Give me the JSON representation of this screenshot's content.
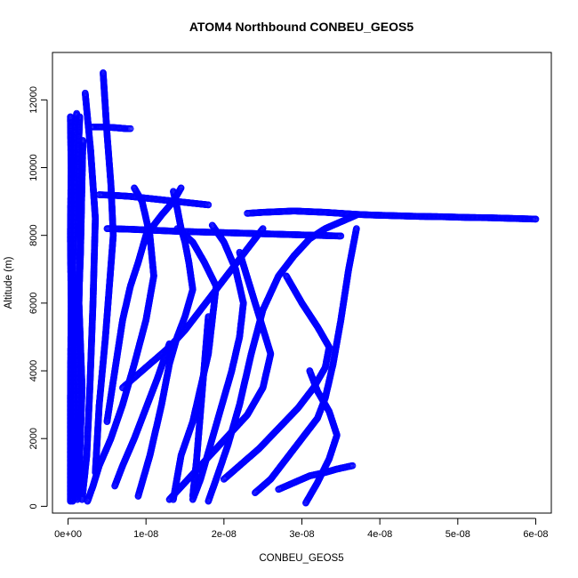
{
  "chart_data": {
    "type": "scatter",
    "title": "ATOM4 Northbound CONBEU_GEOS5",
    "xlabel": "CONBEU_GEOS5",
    "ylabel": "Altitude (m)",
    "xlim": [
      -2e-09,
      6.2e-08
    ],
    "ylim": [
      -200,
      13400
    ],
    "x_ticks": [
      0,
      1e-08,
      2e-08,
      3e-08,
      4e-08,
      5e-08,
      6e-08
    ],
    "x_tick_labels": [
      "0e+00",
      "1e-08",
      "2e-08",
      "3e-08",
      "4e-08",
      "5e-08",
      "6e-08"
    ],
    "y_ticks": [
      0,
      2000,
      4000,
      6000,
      8000,
      10000,
      12000
    ],
    "y_tick_labels": [
      "0",
      "2000",
      "4000",
      "6000",
      "8000",
      "10000",
      "12000"
    ],
    "marker": "open-circle",
    "color": "#0000ff",
    "grid": false,
    "series": [
      {
        "x": [
          6e-10,
          6e-10,
          7e-10,
          6e-10,
          8e-10,
          7e-10,
          9e-10,
          1.1e-09
        ],
        "y": [
          150,
          2000,
          4500,
          7000,
          9000,
          10500,
          11200,
          11600
        ]
      },
      {
        "x": [
          1.2e-09,
          1.5e-09,
          1.8e-09,
          1.4e-09,
          1.6e-09,
          1.3e-09,
          1.5e-09
        ],
        "y": [
          200,
          1500,
          3500,
          6000,
          8500,
          10400,
          11500
        ]
      },
      {
        "x": [
          1.8e-09,
          2.4e-09,
          2.8e-09,
          3.2e-09,
          3.5e-09,
          2.9e-09,
          2.2e-09
        ],
        "y": [
          200,
          1500,
          3500,
          6000,
          8500,
          10500,
          12200
        ]
      },
      {
        "x": [
          2.5e-09,
          3.2e-09,
          4e-09,
          5.5e-09,
          7e-09,
          8.5e-09,
          1e-08,
          1.1e-08,
          1.05e-08,
          9.5e-09,
          8.5e-09
        ],
        "y": [
          150,
          600,
          1200,
          2000,
          3000,
          4200,
          5500,
          6800,
          8000,
          9000,
          9400
        ]
      },
      {
        "x": [
          3.5e-09,
          4e-09,
          4.8e-09,
          5.3e-09,
          5.8e-09,
          5.5e-09,
          5e-09,
          4.5e-09
        ],
        "y": [
          1000,
          3000,
          5000,
          6500,
          8000,
          9500,
          11000,
          12800
        ]
      },
      {
        "x": [
          5e-09,
          6e-09,
          7e-09,
          8e-09,
          9e-09,
          1e-08,
          1.2e-08,
          1.35e-08,
          1.45e-08
        ],
        "y": [
          2500,
          4000,
          5500,
          6500,
          7200,
          8000,
          8600,
          9000,
          9400
        ]
      },
      {
        "x": [
          9e-09,
          1.05e-08,
          1.2e-08,
          1.3e-08,
          1.4e-08,
          1.5e-08,
          1.6e-08,
          1.55e-08,
          1.5e-08,
          1.45e-08,
          1.4e-08,
          1.35e-08
        ],
        "y": [
          300,
          1500,
          3000,
          4200,
          5000,
          5600,
          6400,
          7200,
          7800,
          8200,
          8800,
          9300
        ]
      },
      {
        "x": [
          1.35e-08,
          1.45e-08,
          1.6e-08,
          1.7e-08,
          1.8e-08,
          1.85e-08,
          1.9e-08,
          1.75e-08,
          1.6e-08,
          1.4e-08
        ],
        "y": [
          200,
          1500,
          2500,
          3500,
          4500,
          5500,
          6500,
          7200,
          7800,
          8200
        ]
      },
      {
        "x": [
          1.6e-08,
          1.7e-08,
          1.8e-08,
          1.9e-08,
          2e-08,
          2.1e-08,
          2.2e-08,
          2.25e-08,
          2.15e-08,
          2e-08,
          1.85e-08
        ],
        "y": [
          200,
          800,
          1600,
          2400,
          3200,
          4000,
          5000,
          6000,
          7000,
          7800,
          8300
        ]
      },
      {
        "x": [
          1.8e-08,
          1.9e-08,
          2.05e-08,
          2.2e-08,
          2.35e-08,
          2.5e-08,
          2.7e-08,
          2.9e-08,
          3.1e-08,
          3.3e-08,
          3.5e-08,
          3.7e-08
        ],
        "y": [
          150,
          800,
          1800,
          3000,
          4500,
          5800,
          6800,
          7400,
          7900,
          8200,
          8400,
          8600
        ]
      },
      {
        "x": [
          2.4e-08,
          2.6e-08,
          2.8e-08,
          3e-08,
          3.2e-08,
          3.3e-08,
          3.4e-08,
          3.5e-08,
          3.6e-08,
          3.7e-08
        ],
        "y": [
          400,
          800,
          1400,
          2000,
          2600,
          3200,
          4200,
          5500,
          7000,
          8200
        ]
      },
      {
        "x": [
          2.7e-08,
          2.9e-08,
          3.1e-08,
          3.3e-08,
          3.45e-08,
          3.55e-08,
          3.65e-08
        ],
        "y": [
          500,
          700,
          900,
          1000,
          1100,
          1150,
          1200
        ]
      },
      {
        "x": [
          2.3e-08,
          2.5e-08,
          2.7e-08,
          2.9e-08,
          3.1e-08,
          3.3e-08,
          3.5e-08,
          3.7e-08,
          3.9e-08,
          4.2e-08,
          4.5e-08,
          4.8e-08,
          5.1e-08,
          5.4e-08,
          5.7e-08,
          6e-08
        ],
        "y": [
          8650,
          8680,
          8700,
          8720,
          8700,
          8680,
          8650,
          8620,
          8600,
          8580,
          8560,
          8550,
          8530,
          8520,
          8500,
          8480
        ]
      },
      {
        "x": [
          5e-09,
          8e-09,
          1.1e-08,
          1.4e-08,
          1.7e-08,
          2e-08,
          2.3e-08,
          2.6e-08,
          2.9e-08,
          3.2e-08,
          3.5e-08
        ],
        "y": [
          8200,
          8180,
          8150,
          8120,
          8100,
          8080,
          8060,
          8040,
          8020,
          8000,
          7980
        ]
      },
      {
        "x": [
          4e-09,
          6e-09,
          8e-09,
          1e-08,
          1.2e-08,
          1.4e-08,
          1.6e-08,
          1.8e-08
        ],
        "y": [
          9200,
          9180,
          9150,
          9100,
          9050,
          9000,
          8950,
          8900
        ]
      },
      {
        "x": [
          3e-09,
          4.5e-09,
          6e-09,
          7.5e-09,
          8e-09
        ],
        "y": [
          11200,
          11200,
          11180,
          11150,
          11150
        ]
      },
      {
        "x": [
          3e-10,
          3e-10,
          4e-10,
          3e-10,
          4e-10,
          3e-10
        ],
        "y": [
          150,
          3000,
          6000,
          8000,
          10000,
          11500
        ]
      },
      {
        "x": [
          1e-09,
          1.4e-09,
          1.2e-09,
          1.6e-09,
          1.9e-09
        ],
        "y": [
          250,
          2500,
          5000,
          7500,
          10800
        ]
      },
      {
        "x": [
          1.3e-08,
          1.5e-08,
          1.7e-08,
          1.9e-08,
          2.1e-08,
          2.3e-08,
          2.5e-08,
          2.6e-08,
          2.4e-08,
          2.2e-08
        ],
        "y": [
          200,
          700,
          1200,
          1700,
          2200,
          2700,
          3500,
          4500,
          6000,
          7500
        ]
      },
      {
        "x": [
          2e-08,
          2.2e-08,
          2.45e-08,
          2.7e-08,
          2.95e-08,
          3.15e-08,
          3.3e-08,
          3.35e-08,
          3.2e-08,
          3e-08,
          2.8e-08
        ],
        "y": [
          800,
          1200,
          1700,
          2300,
          2900,
          3500,
          4100,
          4700,
          5300,
          6000,
          6800
        ]
      },
      {
        "x": [
          3.05e-08,
          3.2e-08,
          3.35e-08,
          3.45e-08,
          3.35e-08,
          3.2e-08,
          3.1e-08
        ],
        "y": [
          100,
          700,
          1400,
          2100,
          2800,
          3400,
          4000
        ]
      },
      {
        "x": [
          1.6e-08,
          1.65e-08,
          1.7e-08,
          1.75e-08,
          1.8e-08
        ],
        "y": [
          300,
          1400,
          2800,
          4200,
          5600
        ]
      },
      {
        "x": [
          7e-09,
          9e-09,
          1.1e-08,
          1.3e-08,
          1.5e-08,
          1.7e-08,
          1.9e-08,
          2.1e-08,
          2.3e-08,
          2.5e-08
        ],
        "y": [
          3500,
          3900,
          4300,
          4700,
          5200,
          5800,
          6400,
          7000,
          7600,
          8200
        ]
      },
      {
        "x": [
          6e-09,
          7e-09,
          8.5e-09,
          1e-08,
          1.15e-08,
          1.3e-08
        ],
        "y": [
          600,
          1200,
          2000,
          2900,
          3800,
          4800
        ]
      }
    ]
  }
}
